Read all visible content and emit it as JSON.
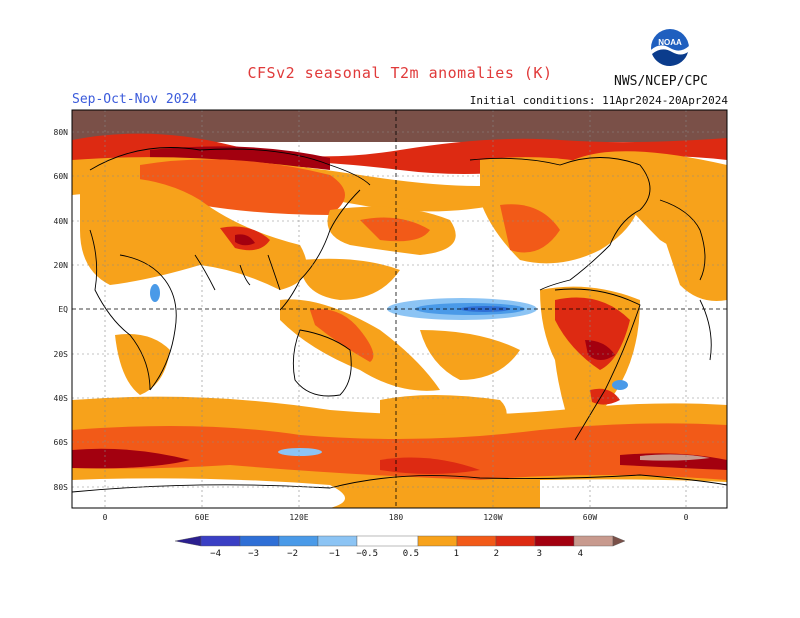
{
  "header": {
    "title": "CFSv2 seasonal T2m anomalies (K)",
    "season": "Sep-Oct-Nov 2024",
    "initial_conditions": "Initial conditions: 11Apr2024-20Apr2024",
    "agency": "NWS/NCEP/CPC",
    "logo_text": "NOAA"
  },
  "map": {
    "lat_labels": [
      "80N",
      "60N",
      "40N",
      "20N",
      "EQ",
      "20S",
      "40S",
      "60S",
      "80S"
    ],
    "lon_labels": [
      "0",
      "60E",
      "120E",
      "180",
      "120W",
      "60W",
      "0"
    ]
  },
  "colorbar": {
    "labels": [
      "-4",
      "-3",
      "-2",
      "-1",
      "-0.5",
      "0.5",
      "1",
      "2",
      "3",
      "4"
    ],
    "colors": {
      "lt_m4": "#2b1f8f",
      "m4_m3": "#3a3fc4",
      "m3_m2": "#2f6fd6",
      "m2_m1": "#4a9ae8",
      "m1_m05": "#8cc4f4",
      "neutral": "#ffffff",
      "p05_1": "#f7a21b",
      "p1_2": "#f25a18",
      "p2_3": "#dd2a12",
      "p3_4": "#a3000f",
      "p4_5": "#c89a8e",
      "gt_5": "#7a5048"
    }
  }
}
